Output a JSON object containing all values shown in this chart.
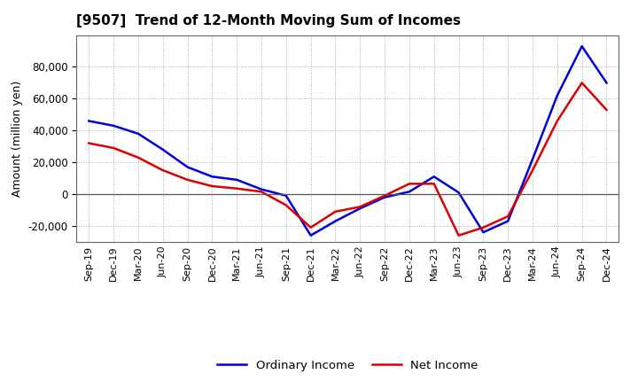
{
  "title": "[9507]  Trend of 12-Month Moving Sum of Incomes",
  "ylabel": "Amount (million yen)",
  "background_color": "#ffffff",
  "grid_color": "#aaaaaa",
  "ordinary_income_color": "#0000dd",
  "net_income_color": "#dd0000",
  "ordinary_income_label": "Ordinary Income",
  "net_income_label": "Net Income",
  "x_labels": [
    "Sep-19",
    "Dec-19",
    "Mar-20",
    "Jun-20",
    "Sep-20",
    "Dec-20",
    "Mar-21",
    "Jun-21",
    "Sep-21",
    "Dec-21",
    "Mar-22",
    "Jun-22",
    "Sep-22",
    "Dec-22",
    "Mar-23",
    "Jun-23",
    "Sep-23",
    "Dec-23",
    "Mar-24",
    "Jun-24",
    "Sep-24",
    "Dec-24"
  ],
  "ordinary_income": [
    46000,
    43000,
    38000,
    28000,
    17000,
    11000,
    9000,
    3000,
    -1000,
    -26000,
    -17000,
    -9000,
    -2000,
    1500,
    11000,
    1000,
    -24000,
    -17000,
    22000,
    62000,
    93000,
    70000
  ],
  "net_income": [
    32000,
    29000,
    23000,
    15000,
    9000,
    5000,
    3500,
    1500,
    -7000,
    -21000,
    -11000,
    -8000,
    -1000,
    6500,
    6500,
    -26000,
    -21000,
    -14000,
    15000,
    46000,
    70000,
    53000
  ],
  "ylim": [
    -30000,
    100000
  ],
  "yticks": [
    -20000,
    0,
    20000,
    40000,
    60000,
    80000
  ],
  "line_width": 1.8
}
